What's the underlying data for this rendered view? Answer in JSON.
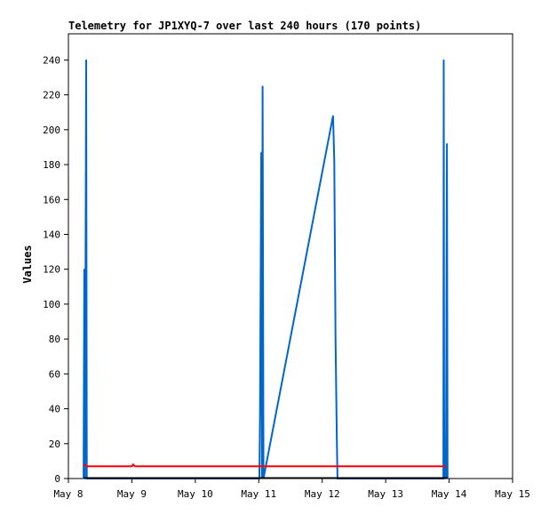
{
  "chart_data": {
    "type": "line",
    "title": "Telemetry for JP1XYQ-7 over last 240 hours (170 points)",
    "xlabel": "",
    "ylabel": "Values",
    "x_tick_labels": [
      "May 8",
      "May 9",
      "May 10",
      "May 11",
      "May 12",
      "May 13",
      "May 14",
      "May 15"
    ],
    "xlim": [
      "May 8",
      "May 15"
    ],
    "ylim": [
      0,
      255
    ],
    "y_ticks": [
      0,
      20,
      40,
      60,
      80,
      100,
      120,
      140,
      160,
      180,
      200,
      220,
      240
    ],
    "grid": false,
    "legend": "none",
    "x_unit": "days since May 8 00:00",
    "series": [
      {
        "color": "#0066cc",
        "points": [
          [
            0.24,
            0
          ],
          [
            0.25,
            120
          ],
          [
            0.26,
            0
          ],
          [
            0.28,
            240
          ],
          [
            0.29,
            0
          ],
          [
            3.01,
            0
          ],
          [
            3.02,
            38
          ],
          [
            3.03,
            112
          ],
          [
            3.04,
            187
          ],
          [
            3.05,
            0
          ],
          [
            3.06,
            225
          ],
          [
            3.075,
            0
          ],
          [
            4.17,
            208
          ],
          [
            4.19,
            182
          ],
          [
            4.2,
            130
          ],
          [
            4.21,
            80
          ],
          [
            4.23,
            25
          ],
          [
            4.24,
            0
          ],
          [
            5.91,
            0
          ],
          [
            5.915,
            240
          ],
          [
            5.92,
            48
          ],
          [
            5.925,
            0
          ],
          [
            5.94,
            15
          ],
          [
            5.95,
            0
          ],
          [
            5.965,
            192
          ],
          [
            5.975,
            0
          ]
        ]
      },
      {
        "color": "#ff0000",
        "points": [
          [
            0.24,
            8
          ],
          [
            0.3,
            7
          ],
          [
            1.0,
            7
          ],
          [
            1.02,
            8
          ],
          [
            1.05,
            7
          ],
          [
            5.95,
            7
          ]
        ]
      }
    ],
    "baseline_color": "#000000"
  }
}
